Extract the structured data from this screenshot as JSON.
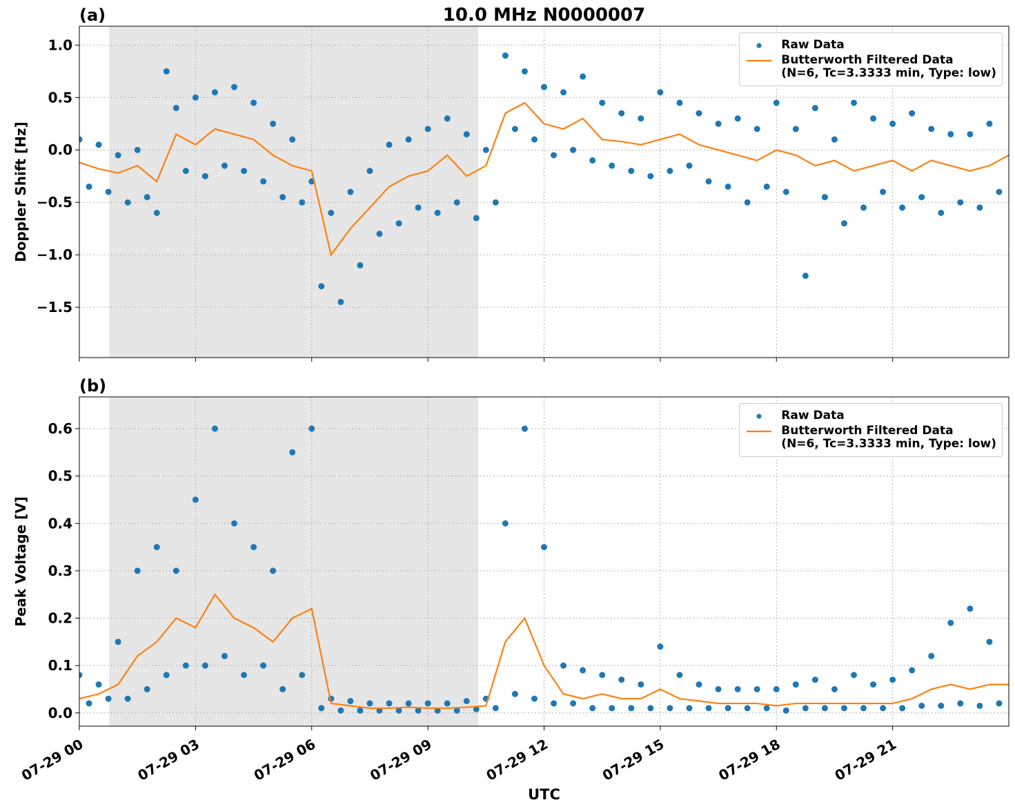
{
  "chart_data": [
    {
      "type": "scatter_line",
      "title": "10.0 MHz N0000007",
      "panel_label": "(a)",
      "ylabel": "Doppler Shift [Hz]",
      "xlim": [
        0,
        24
      ],
      "ylim": [
        -1.98,
        1.18
      ],
      "xticks": [
        {
          "value": 0,
          "label": "07-29 00"
        },
        {
          "value": 3,
          "label": "07-29 03"
        },
        {
          "value": 6,
          "label": "07-29 06"
        },
        {
          "value": 9,
          "label": "07-29 09"
        },
        {
          "value": 12,
          "label": "07-29 12"
        },
        {
          "value": 15,
          "label": "07-29 15"
        },
        {
          "value": 18,
          "label": "07-29 18"
        },
        {
          "value": 21,
          "label": "07-29 21"
        }
      ],
      "yticks": [
        {
          "value": -1.5,
          "label": "−1.5"
        },
        {
          "value": -1.0,
          "label": "−1.0"
        },
        {
          "value": -0.5,
          "label": "−0.5"
        },
        {
          "value": 0,
          "label": "0.0"
        },
        {
          "value": 0.5,
          "label": "0.5"
        },
        {
          "value": 1.0,
          "label": "1.0"
        }
      ],
      "grid": true,
      "legend": "upper right",
      "shade": {
        "start": 0.77,
        "end": 10.3,
        "color": "#e6e6e6"
      },
      "series": [
        {
          "name": "Raw Data",
          "style": "dots",
          "color": "#1f77b4",
          "x": [
            0,
            0.25,
            0.5,
            0.75,
            1,
            1.25,
            1.5,
            1.75,
            2,
            2.25,
            2.5,
            2.75,
            3,
            3.25,
            3.5,
            3.75,
            4,
            4.25,
            4.5,
            4.75,
            5,
            5.25,
            5.5,
            5.75,
            6,
            6.25,
            6.5,
            6.75,
            7,
            7.25,
            7.5,
            7.75,
            8,
            8.25,
            8.5,
            8.75,
            9,
            9.25,
            9.5,
            9.75,
            10,
            10.25,
            10.5,
            10.75,
            11,
            11.25,
            11.5,
            11.75,
            12,
            12.25,
            12.5,
            12.75,
            13,
            13.25,
            13.5,
            13.75,
            14,
            14.25,
            14.5,
            14.75,
            15,
            15.25,
            15.5,
            15.75,
            16,
            16.25,
            16.5,
            16.75,
            17,
            17.25,
            17.5,
            17.75,
            18,
            18.25,
            18.5,
            18.75,
            19,
            19.25,
            19.5,
            19.75,
            20,
            20.25,
            20.5,
            20.75,
            21,
            21.25,
            21.5,
            21.75,
            22,
            22.25,
            22.5,
            22.75,
            23,
            23.25,
            23.5,
            23.75
          ],
          "values": [
            0.1,
            -0.35,
            0.05,
            -0.4,
            -0.05,
            -0.5,
            0.0,
            -0.45,
            -0.6,
            0.75,
            0.4,
            -0.2,
            0.5,
            -0.25,
            0.55,
            -0.15,
            0.6,
            -0.2,
            0.45,
            -0.3,
            0.25,
            -0.45,
            0.1,
            -0.5,
            -0.3,
            -1.3,
            -0.6,
            -1.45,
            -0.4,
            -1.1,
            -0.2,
            -0.8,
            0.05,
            -0.7,
            0.1,
            -0.55,
            0.2,
            -0.6,
            0.3,
            -0.5,
            0.15,
            -0.65,
            0.0,
            -0.5,
            0.9,
            0.2,
            0.75,
            0.1,
            0.6,
            -0.05,
            0.55,
            0.0,
            0.7,
            -0.1,
            0.45,
            -0.15,
            0.35,
            -0.2,
            0.3,
            -0.25,
            0.55,
            -0.2,
            0.45,
            -0.15,
            0.35,
            -0.3,
            0.25,
            -0.35,
            0.3,
            -0.5,
            0.2,
            -0.35,
            0.45,
            -0.4,
            0.2,
            -1.2,
            0.4,
            -0.45,
            0.1,
            -0.7,
            0.45,
            -0.55,
            0.3,
            -0.4,
            0.25,
            -0.55,
            0.35,
            -0.45,
            0.2,
            -0.6,
            0.15,
            -0.5,
            0.15,
            -0.55,
            0.25,
            -0.4
          ]
        },
        {
          "name": "Butterworth Filtered Data\n(N=6, Tc=3.3333 min, Type: low)",
          "style": "line",
          "color": "#ff7f0e",
          "x": [
            0,
            0.5,
            1,
            1.5,
            2,
            2.5,
            3,
            3.5,
            4,
            4.5,
            5,
            5.5,
            6,
            6.5,
            7,
            7.5,
            8,
            8.5,
            9,
            9.5,
            10,
            10.5,
            11,
            11.5,
            12,
            12.5,
            13,
            13.5,
            14,
            14.5,
            15,
            15.5,
            16,
            16.5,
            17,
            17.5,
            18,
            18.5,
            19,
            19.5,
            20,
            20.5,
            21,
            21.5,
            22,
            22.5,
            23,
            23.5,
            24
          ],
          "values": [
            -0.12,
            -0.18,
            -0.22,
            -0.15,
            -0.3,
            0.15,
            0.05,
            0.2,
            0.15,
            0.1,
            -0.05,
            -0.15,
            -0.2,
            -1.0,
            -0.75,
            -0.55,
            -0.35,
            -0.25,
            -0.2,
            -0.05,
            -0.25,
            -0.15,
            0.35,
            0.45,
            0.25,
            0.2,
            0.3,
            0.1,
            0.08,
            0.05,
            0.1,
            0.15,
            0.05,
            0.0,
            -0.05,
            -0.1,
            0.0,
            -0.05,
            -0.15,
            -0.1,
            -0.2,
            -0.15,
            -0.1,
            -0.2,
            -0.1,
            -0.15,
            -0.2,
            -0.15,
            -0.05
          ]
        }
      ]
    },
    {
      "type": "scatter_line",
      "panel_label": "(b)",
      "ylabel": "Peak Voltage [V]",
      "xlabel": "UTC",
      "xlim": [
        0,
        24
      ],
      "ylim": [
        -0.028,
        0.667
      ],
      "xticks": [
        {
          "value": 0,
          "label": "07-29 00"
        },
        {
          "value": 3,
          "label": "07-29 03"
        },
        {
          "value": 6,
          "label": "07-29 06"
        },
        {
          "value": 9,
          "label": "07-29 09"
        },
        {
          "value": 12,
          "label": "07-29 12"
        },
        {
          "value": 15,
          "label": "07-29 15"
        },
        {
          "value": 18,
          "label": "07-29 18"
        },
        {
          "value": 21,
          "label": "07-29 21"
        }
      ],
      "yticks": [
        {
          "value": 0,
          "label": "0.0"
        },
        0.1,
        0.2,
        0.3,
        0.4,
        0.5,
        0.6
      ],
      "grid": true,
      "legend": "upper right",
      "shade": {
        "start": 0.77,
        "end": 10.3,
        "color": "#e6e6e6"
      },
      "series": [
        {
          "name": "Raw Data",
          "style": "dots",
          "color": "#1f77b4",
          "x": [
            0,
            0.25,
            0.5,
            0.75,
            1,
            1.25,
            1.5,
            1.75,
            2,
            2.25,
            2.5,
            2.75,
            3,
            3.25,
            3.5,
            3.75,
            4,
            4.25,
            4.5,
            4.75,
            5,
            5.25,
            5.5,
            5.75,
            6,
            6.25,
            6.5,
            6.75,
            7,
            7.25,
            7.5,
            7.75,
            8,
            8.25,
            8.5,
            8.75,
            9,
            9.25,
            9.5,
            9.75,
            10,
            10.25,
            10.5,
            10.75,
            11,
            11.25,
            11.5,
            11.75,
            12,
            12.25,
            12.5,
            12.75,
            13,
            13.25,
            13.5,
            13.75,
            14,
            14.25,
            14.5,
            14.75,
            15,
            15.25,
            15.5,
            15.75,
            16,
            16.25,
            16.5,
            16.75,
            17,
            17.25,
            17.5,
            17.75,
            18,
            18.25,
            18.5,
            18.75,
            19,
            19.25,
            19.5,
            19.75,
            20,
            20.25,
            20.5,
            20.75,
            21,
            21.25,
            21.5,
            21.75,
            22,
            22.25,
            22.5,
            22.75,
            23,
            23.25,
            23.5,
            23.75
          ],
          "values": [
            0.08,
            0.02,
            0.06,
            0.03,
            0.15,
            0.03,
            0.3,
            0.05,
            0.35,
            0.08,
            0.3,
            0.1,
            0.45,
            0.1,
            0.6,
            0.12,
            0.4,
            0.08,
            0.35,
            0.1,
            0.3,
            0.05,
            0.55,
            0.08,
            0.6,
            0.01,
            0.03,
            0.005,
            0.025,
            0.005,
            0.02,
            0.005,
            0.02,
            0.005,
            0.02,
            0.005,
            0.02,
            0.005,
            0.02,
            0.005,
            0.025,
            0.008,
            0.03,
            0.01,
            0.4,
            0.04,
            0.6,
            0.03,
            0.35,
            0.02,
            0.1,
            0.02,
            0.09,
            0.01,
            0.08,
            0.01,
            0.07,
            0.01,
            0.06,
            0.01,
            0.14,
            0.01,
            0.08,
            0.01,
            0.06,
            0.01,
            0.05,
            0.01,
            0.05,
            0.01,
            0.05,
            0.01,
            0.05,
            0.005,
            0.06,
            0.01,
            0.07,
            0.01,
            0.05,
            0.01,
            0.08,
            0.01,
            0.06,
            0.01,
            0.07,
            0.01,
            0.09,
            0.015,
            0.12,
            0.015,
            0.19,
            0.02,
            0.22,
            0.015,
            0.15,
            0.02
          ]
        },
        {
          "name": "Butterworth Filtered Data\n(N=6, Tc=3.3333 min, Type: low)",
          "style": "line",
          "color": "#ff7f0e",
          "x": [
            0,
            0.5,
            1,
            1.5,
            2,
            2.5,
            3,
            3.5,
            4,
            4.5,
            5,
            5.5,
            6,
            6.5,
            7,
            7.5,
            8,
            8.5,
            9,
            9.5,
            10,
            10.5,
            11,
            11.5,
            12,
            12.5,
            13,
            13.5,
            14,
            14.5,
            15,
            15.5,
            16,
            16.5,
            17,
            17.5,
            18,
            18.5,
            19,
            19.5,
            20,
            20.5,
            21,
            21.5,
            22,
            22.5,
            23,
            23.5,
            24
          ],
          "values": [
            0.03,
            0.04,
            0.06,
            0.12,
            0.15,
            0.2,
            0.18,
            0.25,
            0.2,
            0.18,
            0.15,
            0.2,
            0.22,
            0.02,
            0.015,
            0.01,
            0.01,
            0.012,
            0.01,
            0.01,
            0.012,
            0.015,
            0.15,
            0.2,
            0.1,
            0.04,
            0.03,
            0.04,
            0.03,
            0.03,
            0.05,
            0.03,
            0.025,
            0.02,
            0.02,
            0.02,
            0.015,
            0.02,
            0.02,
            0.02,
            0.02,
            0.02,
            0.02,
            0.03,
            0.05,
            0.06,
            0.05,
            0.06,
            0.06
          ]
        }
      ]
    }
  ]
}
